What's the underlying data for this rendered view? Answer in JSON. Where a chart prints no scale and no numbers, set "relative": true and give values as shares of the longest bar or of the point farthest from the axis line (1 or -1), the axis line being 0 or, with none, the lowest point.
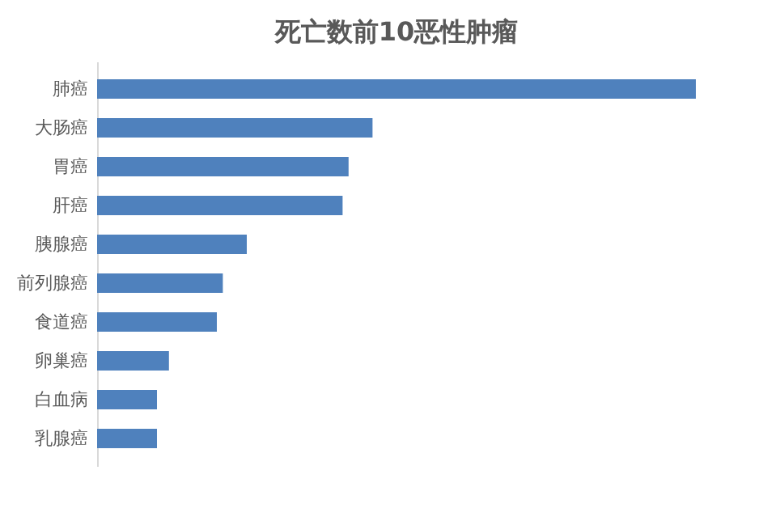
{
  "chart_data": {
    "type": "bar",
    "orientation": "horizontal",
    "relative": true,
    "title": "死亡数前10恶性肿瘤",
    "categories": [
      "肺癌",
      "大肠癌",
      "胃癌",
      "肝癌",
      "胰腺癌",
      "前列腺癌",
      "食道癌",
      "卵巢癌",
      "白血病",
      "乳腺癌"
    ],
    "values": [
      1,
      0.46,
      0.42,
      0.41,
      0.25,
      0.21,
      0.2,
      0.12,
      0.1,
      0.1
    ],
    "color": "#4f81bd"
  }
}
